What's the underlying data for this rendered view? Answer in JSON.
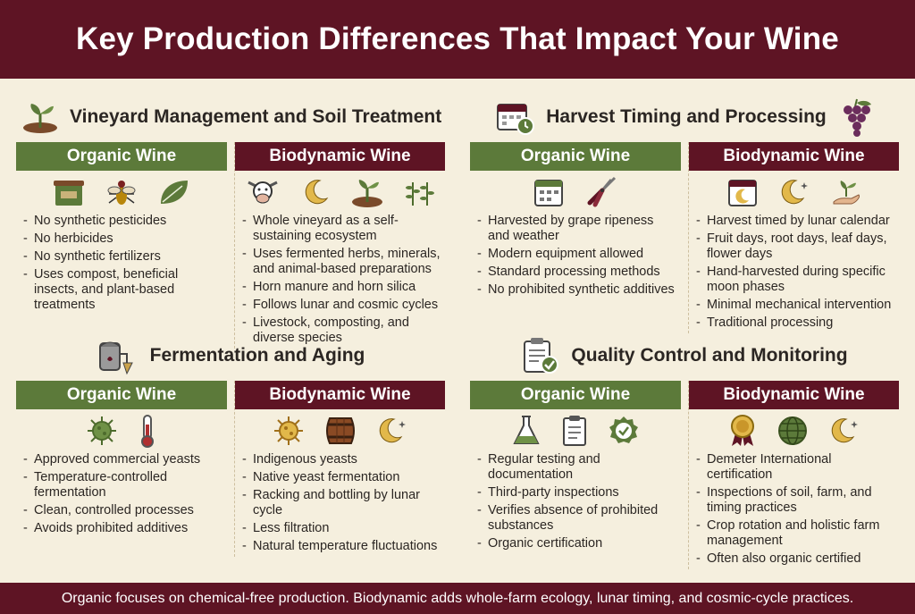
{
  "title": "Key Production Differences That Impact Your Wine",
  "footer": "Organic focuses on chemical-free production. Biodynamic adds whole-farm ecology, lunar timing, and cosmic-cycle practices.",
  "colors": {
    "burgundy": "#5e1424",
    "olive_green": "#5c7a3a",
    "background": "#f5efde"
  },
  "sections": [
    {
      "title": "Vineyard Management and Soil Treatment",
      "icons": [
        "seedling-soil-icon"
      ],
      "organic": {
        "heading": "Organic Wine",
        "icons": [
          "compost-bin-icon",
          "beneficial-insect-icon",
          "leaf-icon"
        ],
        "items": [
          "No synthetic pesticides",
          "No herbicides",
          "No synthetic fertilizers",
          "Uses compost, beneficial insects, and plant-based treatments"
        ]
      },
      "biodynamic": {
        "heading": "Biodynamic Wine",
        "icons": [
          "cow-icon",
          "moon-icon",
          "seedling-soil-icon",
          "herbs-icon"
        ],
        "items": [
          "Whole vineyard as a self-sustaining ecosystem",
          "Uses fermented herbs, minerals, and animal-based preparations",
          "Horn manure and horn silica",
          "Follows lunar and cosmic cycles",
          "Livestock, composting, and diverse species"
        ]
      }
    },
    {
      "title": "Harvest Timing and Processing",
      "icons": [
        "calendar-clock-icon",
        "grapes-icon"
      ],
      "organic": {
        "heading": "Organic Wine",
        "icons": [
          "calendar-icon",
          "pruning-shears-icon"
        ],
        "items": [
          "Harvested by grape ripeness and weather",
          "Modern equipment allowed",
          "Standard processing methods",
          "No prohibited synthetic additives"
        ]
      },
      "biodynamic": {
        "heading": "Biodynamic Wine",
        "icons": [
          "moon-calendar-icon",
          "moon-stars-icon",
          "hand-sprout-icon"
        ],
        "items": [
          "Harvest timed by lunar calendar",
          "Fruit days, root days, leaf days, flower days",
          "Hand-harvested during specific moon phases",
          "Minimal mechanical intervention",
          "Traditional processing"
        ]
      }
    },
    {
      "title": "Fermentation and Aging",
      "icons": [
        "fermentation-tank-icon"
      ],
      "organic": {
        "heading": "Organic Wine",
        "icons": [
          "yeast-icon",
          "thermometer-icon"
        ],
        "items": [
          "Approved commercial yeasts",
          "Temperature-controlled fermentation",
          "Clean, controlled processes",
          "Avoids prohibited additives"
        ]
      },
      "biodynamic": {
        "heading": "Biodynamic Wine",
        "icons": [
          "native-yeast-icon",
          "barrel-icon",
          "moon-stars-icon"
        ],
        "items": [
          "Indigenous yeasts",
          "Native yeast fermentation",
          "Racking and bottling by lunar cycle",
          "Less filtration",
          "Natural temperature fluctuations"
        ]
      }
    },
    {
      "title": "Quality Control and Monitoring",
      "icons": [
        "checklist-clipboard-icon"
      ],
      "organic": {
        "heading": "Organic Wine",
        "icons": [
          "lab-flask-icon",
          "documentation-icon",
          "certified-badge-icon"
        ],
        "items": [
          "Regular testing and documentation",
          "Third-party inspections",
          "Verifies absence of prohibited substances",
          "Organic certification"
        ]
      },
      "biodynamic": {
        "heading": "Biodynamic Wine",
        "icons": [
          "award-medal-icon",
          "globe-icon",
          "moon-stars-icon"
        ],
        "items": [
          "Demeter International certification",
          "Inspections of soil, farm, and timing practices",
          "Crop rotation and holistic farm management",
          "Often also organic certified"
        ]
      }
    }
  ]
}
